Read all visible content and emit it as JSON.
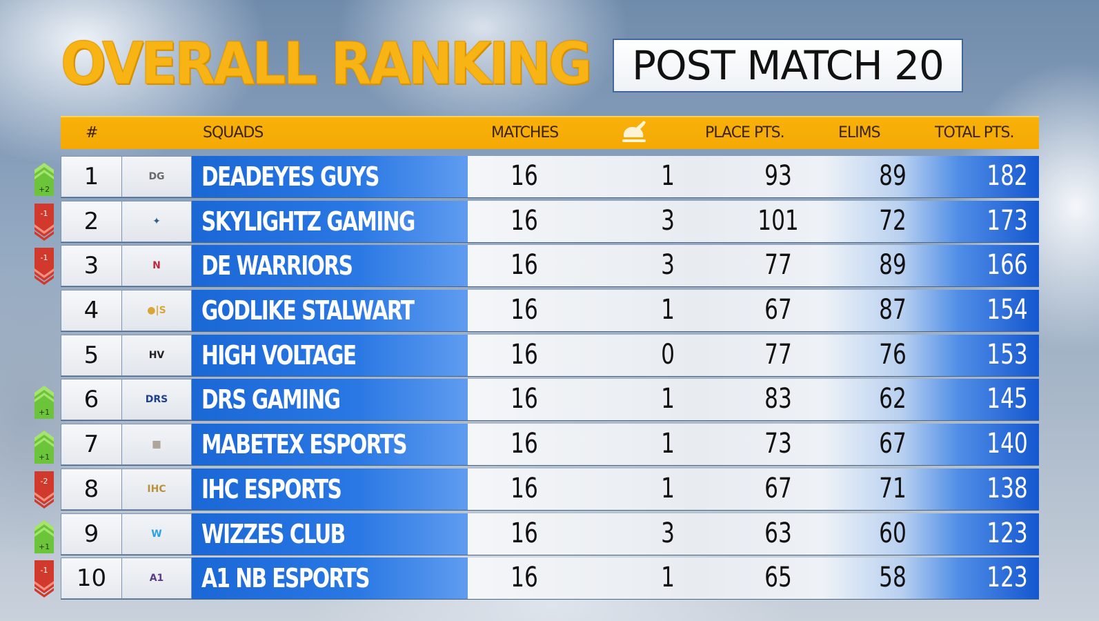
{
  "title": "OVERALL RANKING",
  "subtitle": "POST MATCH 20",
  "colors": {
    "title_gold": "#f7b414",
    "header_orange": "#f5a803",
    "name_blue": "#1a67d6",
    "rank_up_green": "#6cc43a",
    "rank_down_red": "#d0392b"
  },
  "header": {
    "rank": "#",
    "squads": "SQUADS",
    "matches": "MATCHES",
    "wins_icon": "chicken-dinner-icon",
    "place_pts": "PLACE PTS.",
    "elims": "ELIMS",
    "total_pts": "TOTAL PTS."
  },
  "rows": [
    {
      "rank": "1",
      "change": "+2",
      "dir": "up",
      "logo": "deadeyes-guys-logo",
      "name": "DEADEYES GUYS",
      "matches": "16",
      "wins": "1",
      "place_pts": "93",
      "elims": "89",
      "total": "182"
    },
    {
      "rank": "2",
      "change": "-1",
      "dir": "down",
      "logo": "skylightz-gaming-logo",
      "name": "SKYLIGHTZ GAMING",
      "matches": "16",
      "wins": "3",
      "place_pts": "101",
      "elims": "72",
      "total": "173"
    },
    {
      "rank": "3",
      "change": "-1",
      "dir": "down",
      "logo": "de-warriors-logo",
      "name": "DE WARRIORS",
      "matches": "16",
      "wins": "3",
      "place_pts": "77",
      "elims": "89",
      "total": "166"
    },
    {
      "rank": "4",
      "change": "",
      "dir": "none",
      "logo": "godlike-stalwart-logo",
      "name": "GODLIKE STALWART",
      "matches": "16",
      "wins": "1",
      "place_pts": "67",
      "elims": "87",
      "total": "154"
    },
    {
      "rank": "5",
      "change": "",
      "dir": "none",
      "logo": "high-voltage-logo",
      "name": "HIGH VOLTAGE",
      "matches": "16",
      "wins": "0",
      "place_pts": "77",
      "elims": "76",
      "total": "153"
    },
    {
      "rank": "6",
      "change": "+1",
      "dir": "up",
      "logo": "drs-gaming-logo",
      "name": "DRS GAMING",
      "matches": "16",
      "wins": "1",
      "place_pts": "83",
      "elims": "62",
      "total": "145"
    },
    {
      "rank": "7",
      "change": "+1",
      "dir": "up",
      "logo": "mabetex-esports-logo",
      "name": "MABETEX ESPORTS",
      "matches": "16",
      "wins": "1",
      "place_pts": "73",
      "elims": "67",
      "total": "140"
    },
    {
      "rank": "8",
      "change": "-2",
      "dir": "down",
      "logo": "ihc-esports-logo",
      "name": "IHC ESPORTS",
      "matches": "16",
      "wins": "1",
      "place_pts": "67",
      "elims": "71",
      "total": "138"
    },
    {
      "rank": "9",
      "change": "+1",
      "dir": "up",
      "logo": "wizzes-club-logo",
      "name": "WIZZES CLUB",
      "matches": "16",
      "wins": "3",
      "place_pts": "63",
      "elims": "60",
      "total": "123"
    },
    {
      "rank": "10",
      "change": "-1",
      "dir": "down",
      "logo": "a1-nb-esports-logo",
      "name": "A1 NB ESPORTS",
      "matches": "16",
      "wins": "1",
      "place_pts": "65",
      "elims": "58",
      "total": "123"
    }
  ]
}
